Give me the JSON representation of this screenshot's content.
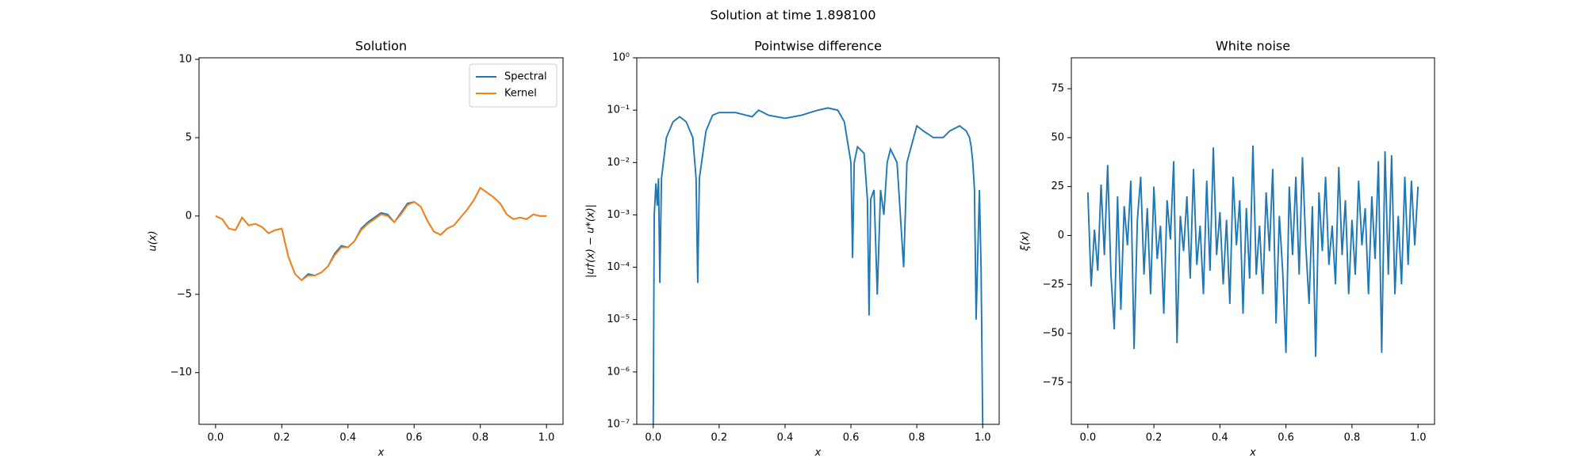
{
  "title": "Solution at time 1.898100",
  "chart_data": [
    {
      "type": "line",
      "title": "Solution",
      "x_label": "x",
      "y_label": "u(x)",
      "legend": "upper right",
      "xlim": [
        -0.05,
        1.05
      ],
      "ylim": [
        -13.3,
        10.1
      ],
      "xticks": [
        {
          "value": 0,
          "label": "0.0"
        },
        0.2,
        0.4,
        0.6,
        0.8,
        {
          "value": 1,
          "label": "1.0"
        }
      ],
      "yticks": [
        {
          "value": -10,
          "label": "−10"
        },
        {
          "value": -5,
          "label": "−5"
        },
        0,
        5,
        10
      ],
      "x": [
        0,
        0.02,
        0.04,
        0.06,
        0.08,
        0.1,
        0.12,
        0.14,
        0.16,
        0.18,
        0.2,
        0.22,
        0.24,
        0.26,
        0.28,
        0.3,
        0.32,
        0.34,
        0.36,
        0.38,
        0.4,
        0.42,
        0.44,
        0.46,
        0.48,
        0.5,
        0.52,
        0.54,
        0.56,
        0.58,
        0.6,
        0.62,
        0.64,
        0.66,
        0.68,
        0.7,
        0.72,
        0.74,
        0.76,
        0.78,
        0.8,
        0.82,
        0.84,
        0.86,
        0.88,
        0.9,
        0.92,
        0.94,
        0.96,
        0.98,
        1.0
      ],
      "series": [
        {
          "name": "Spectral",
          "color": "#1f77b4",
          "values": [
            0,
            -0.2,
            -0.8,
            -0.9,
            -0.1,
            -0.6,
            -0.5,
            -0.7,
            -1.1,
            -0.9,
            -0.8,
            -2.6,
            -3.7,
            -4.1,
            -3.7,
            -3.8,
            -3.6,
            -3.2,
            -2.4,
            -1.9,
            -2.0,
            -1.6,
            -0.8,
            -0.4,
            -0.1,
            0.2,
            0.1,
            -0.4,
            0.2,
            0.8,
            0.9,
            0.6,
            -0.3,
            -1.0,
            -1.2,
            -0.8,
            -0.6,
            -0.1,
            0.4,
            1.0,
            1.8,
            1.5,
            1.2,
            0.8,
            0.1,
            -0.2,
            -0.1,
            -0.2,
            0.1,
            0.0,
            0.0
          ]
        },
        {
          "name": "Kernel",
          "color": "#ff7f0e",
          "values": [
            0,
            -0.2,
            -0.8,
            -0.9,
            -0.1,
            -0.6,
            -0.5,
            -0.7,
            -1.1,
            -0.9,
            -0.8,
            -2.6,
            -3.7,
            -4.1,
            -3.8,
            -3.8,
            -3.6,
            -3.2,
            -2.5,
            -2.0,
            -2.0,
            -1.6,
            -0.9,
            -0.5,
            -0.2,
            0.1,
            0.0,
            -0.4,
            0.1,
            0.7,
            0.9,
            0.6,
            -0.3,
            -1.0,
            -1.2,
            -0.8,
            -0.6,
            -0.1,
            0.4,
            1.0,
            1.8,
            1.5,
            1.2,
            0.8,
            0.1,
            -0.2,
            -0.1,
            -0.2,
            0.1,
            0.0,
            0.0
          ]
        }
      ]
    },
    {
      "type": "line",
      "title": "Pointwise difference",
      "x_label": "x",
      "y_label": "|u†(x) − u*(x)|",
      "log_y": true,
      "xlim": [
        -0.05,
        1.05
      ],
      "ylim": [
        1e-07,
        1
      ],
      "xticks": [
        {
          "value": 0,
          "label": "0.0"
        },
        0.2,
        0.4,
        0.6,
        0.8,
        {
          "value": 1,
          "label": "1.0"
        }
      ],
      "yticks": [
        {
          "value": 1e-07,
          "label": "10⁻⁷"
        },
        {
          "value": 1e-06,
          "label": "10⁻⁶"
        },
        {
          "value": 1e-05,
          "label": "10⁻⁵"
        },
        {
          "value": 0.0001,
          "label": "10⁻⁴"
        },
        {
          "value": 0.001,
          "label": "10⁻³"
        },
        {
          "value": 0.01,
          "label": "10⁻²"
        },
        {
          "value": 0.1,
          "label": "10⁻¹"
        },
        {
          "value": 1,
          "label": "10⁰"
        }
      ],
      "x": [
        0,
        0.003,
        0.008,
        0.012,
        0.016,
        0.02,
        0.025,
        0.04,
        0.06,
        0.08,
        0.1,
        0.12,
        0.13,
        0.135,
        0.14,
        0.16,
        0.18,
        0.2,
        0.25,
        0.3,
        0.32,
        0.35,
        0.4,
        0.45,
        0.5,
        0.53,
        0.56,
        0.58,
        0.6,
        0.605,
        0.61,
        0.62,
        0.64,
        0.65,
        0.655,
        0.66,
        0.67,
        0.68,
        0.69,
        0.7,
        0.71,
        0.72,
        0.74,
        0.76,
        0.77,
        0.8,
        0.82,
        0.85,
        0.88,
        0.9,
        0.93,
        0.95,
        0.96,
        0.965,
        0.97,
        0.975,
        0.98,
        0.99,
        0.995,
        1.0
      ],
      "series": [
        {
          "color": "#1f77b4",
          "values": [
            1e-07,
            0.001,
            0.004,
            0.0015,
            0.005,
            5e-05,
            0.005,
            0.03,
            0.06,
            0.075,
            0.06,
            0.03,
            0.005,
            5e-05,
            0.005,
            0.04,
            0.08,
            0.09,
            0.09,
            0.075,
            0.1,
            0.08,
            0.07,
            0.08,
            0.1,
            0.11,
            0.1,
            0.06,
            0.01,
            0.00015,
            0.01,
            0.02,
            0.015,
            0.002,
            1.2e-05,
            0.002,
            0.003,
            3e-05,
            0.003,
            0.001,
            0.01,
            0.018,
            0.01,
            0.0001,
            0.01,
            0.05,
            0.04,
            0.03,
            0.03,
            0.04,
            0.05,
            0.04,
            0.03,
            0.02,
            0.01,
            0.003,
            1e-05,
            0.003,
            0.0001,
            1e-07
          ]
        }
      ]
    },
    {
      "type": "line",
      "title": "White noise",
      "x_label": "x",
      "y_label": "ξ(x)",
      "xlim": [
        -0.05,
        1.05
      ],
      "ylim": [
        -96.5,
        90.8
      ],
      "xticks": [
        {
          "value": 0,
          "label": "0.0"
        },
        0.2,
        0.4,
        0.6,
        0.8,
        {
          "value": 1,
          "label": "1.0"
        }
      ],
      "yticks": [
        {
          "value": -75,
          "label": "−75"
        },
        {
          "value": -50,
          "label": "−50"
        },
        {
          "value": -25,
          "label": "−25"
        },
        0,
        25,
        50,
        75
      ],
      "x": [
        0,
        0.01,
        0.02,
        0.03,
        0.04,
        0.05,
        0.06,
        0.07,
        0.08,
        0.09,
        0.1,
        0.11,
        0.12,
        0.13,
        0.14,
        0.15,
        0.16,
        0.17,
        0.18,
        0.19,
        0.2,
        0.21,
        0.22,
        0.23,
        0.24,
        0.25,
        0.26,
        0.27,
        0.28,
        0.29,
        0.3,
        0.31,
        0.32,
        0.33,
        0.34,
        0.35,
        0.36,
        0.37,
        0.38,
        0.39,
        0.4,
        0.41,
        0.42,
        0.43,
        0.44,
        0.45,
        0.46,
        0.47,
        0.48,
        0.49,
        0.5,
        0.51,
        0.52,
        0.53,
        0.54,
        0.55,
        0.56,
        0.57,
        0.58,
        0.59,
        0.6,
        0.61,
        0.62,
        0.63,
        0.64,
        0.65,
        0.66,
        0.67,
        0.68,
        0.69,
        0.7,
        0.71,
        0.72,
        0.73,
        0.74,
        0.75,
        0.76,
        0.77,
        0.78,
        0.79,
        0.8,
        0.81,
        0.82,
        0.83,
        0.84,
        0.85,
        0.86,
        0.87,
        0.88,
        0.89,
        0.9,
        0.91,
        0.92,
        0.93,
        0.94,
        0.95,
        0.96,
        0.97,
        0.98,
        0.99,
        1.0
      ],
      "series": [
        {
          "color": "#1f77b4",
          "values": [
            22,
            -26,
            3,
            -18,
            26,
            -10,
            36,
            -20,
            -48,
            20,
            -38,
            15,
            -5,
            28,
            -58,
            8,
            30,
            -20,
            14,
            -30,
            25,
            -12,
            5,
            -40,
            18,
            -2,
            38,
            -55,
            10,
            -8,
            20,
            -22,
            34,
            -15,
            5,
            -30,
            28,
            -18,
            45,
            -10,
            12,
            -25,
            8,
            -35,
            30,
            -5,
            18,
            -40,
            14,
            -22,
            46,
            -20,
            5,
            -30,
            22,
            -8,
            34,
            -45,
            10,
            -18,
            -60,
            25,
            -10,
            30,
            -20,
            40,
            -5,
            -35,
            15,
            -62,
            22,
            -8,
            30,
            -15,
            5,
            -25,
            35,
            -10,
            18,
            -30,
            8,
            -20,
            28,
            -5,
            14,
            -30,
            20,
            -12,
            38,
            -60,
            43,
            -20,
            41,
            -30,
            10,
            -25,
            30,
            -15,
            28,
            -5,
            25
          ]
        }
      ]
    }
  ]
}
